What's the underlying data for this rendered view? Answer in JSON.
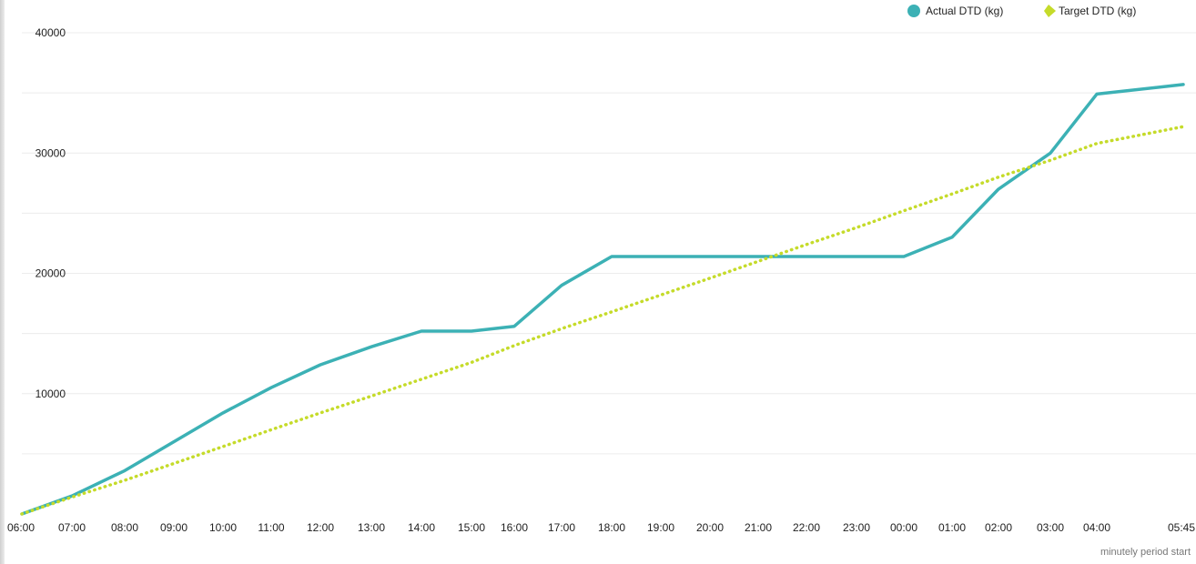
{
  "chart_data": {
    "type": "line",
    "title": "",
    "xlabel": "minutely period start",
    "ylabel": "",
    "ylim": [
      0,
      40000
    ],
    "yticks": [
      10000,
      20000,
      30000,
      40000
    ],
    "grid": true,
    "legend_position": "top-right",
    "x": [
      "06:00",
      "07:00",
      "08:00",
      "09:00",
      "10:00",
      "11:00",
      "12:00",
      "13:00",
      "14:00",
      "15:00",
      "16:00",
      "17:00",
      "18:00",
      "19:00",
      "20:00",
      "21:00",
      "22:00",
      "23:00",
      "00:00",
      "01:00",
      "02:00",
      "03:00",
      "04:00",
      "05:45"
    ],
    "xticks": [
      "06:00",
      "07:00",
      "08:00",
      "09:00",
      "10:00",
      "11:00",
      "12:00",
      "13:00",
      "14:00",
      "15:00",
      "16:00",
      "17:00",
      "18:00",
      "19:00",
      "20:00",
      "21:00",
      "22:00",
      "23:00",
      "00:00",
      "01:00",
      "02:00",
      "03:00",
      "04:00",
      "05:45"
    ],
    "series": [
      {
        "name": "Actual DTD (kg)",
        "color": "#3cb1b5",
        "style": "solid",
        "marker": "circle",
        "values": [
          0,
          1500,
          3600,
          6000,
          8400,
          10500,
          12400,
          13900,
          15200,
          15200,
          15600,
          19000,
          21400,
          21400,
          21400,
          21400,
          21400,
          21400,
          21400,
          23000,
          27000,
          30000,
          34900,
          35700
        ]
      },
      {
        "name": "Target DTD (kg)",
        "color": "#c5db2a",
        "style": "dotted",
        "marker": "diamond",
        "values": [
          0,
          1400,
          2800,
          4200,
          5600,
          7000,
          8400,
          9800,
          11200,
          12600,
          14000,
          15400,
          16800,
          18200,
          19600,
          21000,
          22400,
          23800,
          25200,
          26600,
          28000,
          29400,
          30800,
          32200
        ]
      }
    ]
  }
}
